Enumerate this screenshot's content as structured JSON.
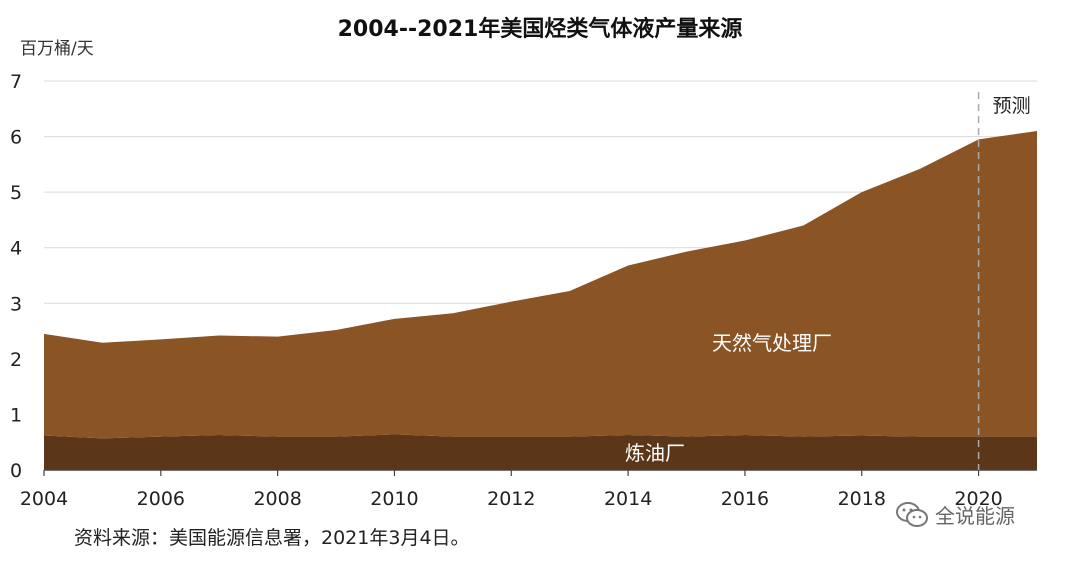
{
  "chart_data": {
    "type": "area",
    "stacked": true,
    "title": "2004--2021年美国烃类气体液产量来源",
    "ylabel": "百万桶/天",
    "xlabel": "",
    "xlim": [
      2004,
      2021
    ],
    "ylim": [
      0,
      7
    ],
    "yticks": [
      "0",
      "1",
      "2",
      "3",
      "4",
      "5",
      "6",
      "7"
    ],
    "xticks": [
      "2004",
      "2006",
      "2008",
      "2010",
      "2012",
      "2014",
      "2016",
      "2018",
      "2020"
    ],
    "grid": true,
    "x": [
      2004,
      2005,
      2006,
      2007,
      2008,
      2009,
      2010,
      2011,
      2012,
      2013,
      2014,
      2015,
      2016,
      2017,
      2018,
      2019,
      2020,
      2021
    ],
    "series": [
      {
        "name": "炼油厂",
        "color": "#5c3618",
        "values": [
          0.62,
          0.57,
          0.6,
          0.63,
          0.6,
          0.6,
          0.64,
          0.6,
          0.6,
          0.6,
          0.63,
          0.6,
          0.63,
          0.6,
          0.62,
          0.6,
          0.6,
          0.6
        ]
      },
      {
        "name": "天然气处理厂",
        "color": "#8a5425",
        "values": [
          1.83,
          1.72,
          1.75,
          1.79,
          1.8,
          1.92,
          2.08,
          2.22,
          2.43,
          2.62,
          3.05,
          3.33,
          3.5,
          3.8,
          4.38,
          4.82,
          5.35,
          5.5
        ]
      }
    ],
    "annotations": [
      {
        "text": "预测",
        "x": 2020
      }
    ]
  },
  "source_note": "资料来源：美国能源信息署，2021年3月4日。",
  "watermark": {
    "text": "全说能源",
    "icon": "wechat-icon"
  }
}
